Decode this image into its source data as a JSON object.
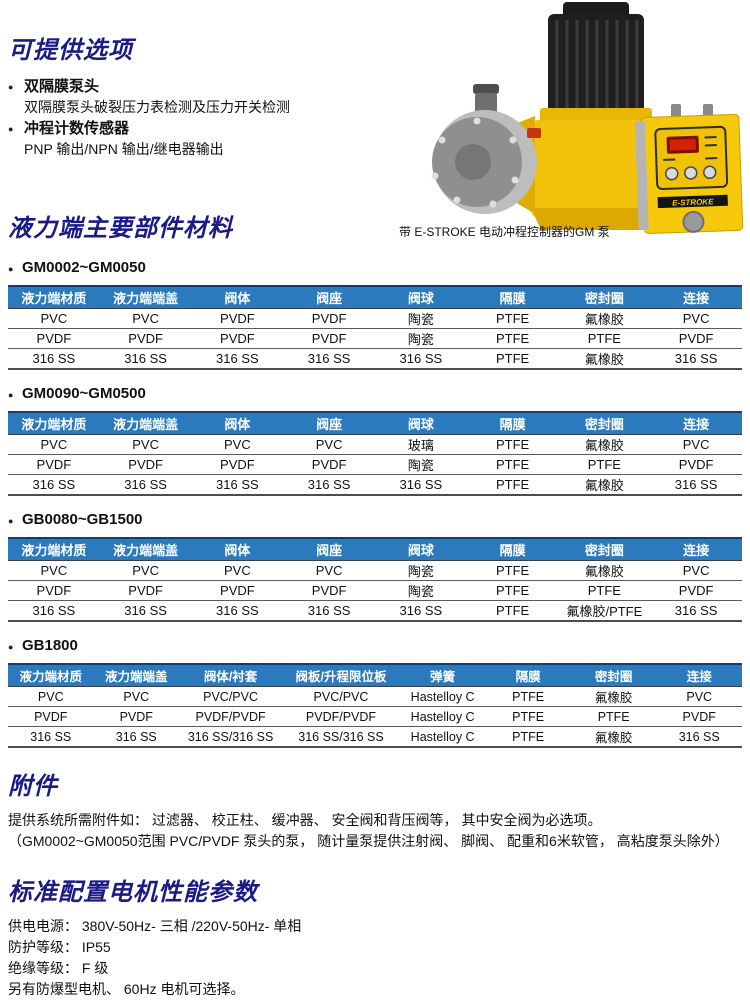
{
  "colors": {
    "heading": "#1b1b86",
    "table_header_bg": "#2b7abd",
    "pump_yellow": "#f3c20a",
    "display_red": "#d42200"
  },
  "options": {
    "title": "可提供选项",
    "items": [
      {
        "label": "双隔膜泵头",
        "sub": "双隔膜泵头破裂压力表检测及压力开关检测"
      },
      {
        "label": "冲程计数传感器",
        "sub": "PNP 输出/NPN 输出/继电器输出"
      }
    ]
  },
  "figure": {
    "caption": "带 E-STROKE 电动冲程控制器的GM 泵",
    "controller_label": "E-STROKE"
  },
  "materials": {
    "title": "液力端主要部件材料",
    "tables": [
      {
        "model": "GM0002~GM0050",
        "headers": [
          "液力端材质",
          "液力端端盖",
          "阀体",
          "阀座",
          "阀球",
          "隔膜",
          "密封圈",
          "连接"
        ],
        "rows": [
          [
            "PVC",
            "PVC",
            "PVDF",
            "PVDF",
            "陶瓷",
            "PTFE",
            "氟橡胶",
            "PVC"
          ],
          [
            "PVDF",
            "PVDF",
            "PVDF",
            "PVDF",
            "陶瓷",
            "PTFE",
            "PTFE",
            "PVDF"
          ],
          [
            "316 SS",
            "316 SS",
            "316 SS",
            "316 SS",
            "316 SS",
            "PTFE",
            "氟橡胶",
            "316 SS"
          ]
        ]
      },
      {
        "model": "GM0090~GM0500",
        "headers": [
          "液力端材质",
          "液力端端盖",
          "阀体",
          "阀座",
          "阀球",
          "隔膜",
          "密封圈",
          "连接"
        ],
        "rows": [
          [
            "PVC",
            "PVC",
            "PVC",
            "PVC",
            "玻璃",
            "PTFE",
            "氟橡胶",
            "PVC"
          ],
          [
            "PVDF",
            "PVDF",
            "PVDF",
            "PVDF",
            "陶瓷",
            "PTFE",
            "PTFE",
            "PVDF"
          ],
          [
            "316 SS",
            "316 SS",
            "316 SS",
            "316 SS",
            "316 SS",
            "PTFE",
            "氟橡胶",
            "316 SS"
          ]
        ]
      },
      {
        "model": "GB0080~GB1500",
        "headers": [
          "液力端材质",
          "液力端端盖",
          "阀体",
          "阀座",
          "阀球",
          "隔膜",
          "密封圈",
          "连接"
        ],
        "rows": [
          [
            "PVC",
            "PVC",
            "PVC",
            "PVC",
            "陶瓷",
            "PTFE",
            "氟橡胶",
            "PVC"
          ],
          [
            "PVDF",
            "PVDF",
            "PVDF",
            "PVDF",
            "陶瓷",
            "PTFE",
            "PTFE",
            "PVDF"
          ],
          [
            "316 SS",
            "316 SS",
            "316 SS",
            "316 SS",
            "316 SS",
            "PTFE",
            "氟橡胶/PTFE",
            "316 SS"
          ]
        ]
      },
      {
        "model": "GB1800",
        "headers": [
          "液力端材质",
          "液力端端盖",
          "阀体/衬套",
          "阀板/升程限位板",
          "弹簧",
          "隔膜",
          "密封圈",
          "连接"
        ],
        "rows": [
          [
            "PVC",
            "PVC",
            "PVC/PVC",
            "PVC/PVC",
            "Hastelloy C",
            "PTFE",
            "氟橡胶",
            "PVC"
          ],
          [
            "PVDF",
            "PVDF",
            "PVDF/PVDF",
            "PVDF/PVDF",
            "Hastelloy C",
            "PTFE",
            "PTFE",
            "PVDF"
          ],
          [
            "316 SS",
            "316 SS",
            "316 SS/316 SS",
            "316 SS/316 SS",
            "Hastelloy C",
            "PTFE",
            "氟橡胶",
            "316 SS"
          ]
        ]
      }
    ]
  },
  "accessories": {
    "title": "附件",
    "line1": "提供系统所需附件如： 过滤器、 校正柱、 缓冲器、 安全阀和背压阀等， 其中安全阀为必选项。",
    "line2": "（GM0002~GM0050范围 PVC/PVDF 泵头的泵， 随计量泵提供注射阀、 脚阀、 配重和6米软管， 高粘度泵头除外）"
  },
  "motor": {
    "title": "标准配置电机性能参数",
    "lines": [
      "供电电源：  380V-50Hz- 三相 /220V-50Hz- 单相",
      "防护等级：  IP55",
      "绝缘等级：  F 级",
      "另有防爆型电机、 60Hz 电机可选择。"
    ]
  }
}
